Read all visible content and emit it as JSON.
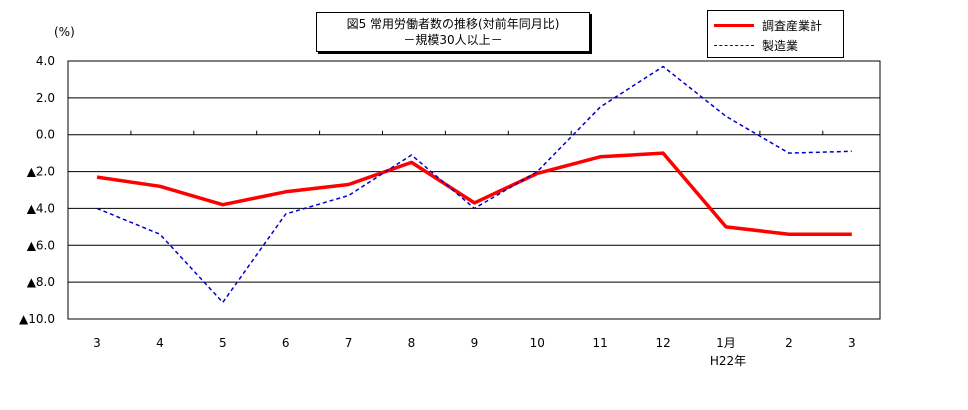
{
  "chart_data": {
    "type": "line",
    "title": "図5 常用労働者数の推移(対前年同月比)",
    "subtitle": "－規模30人以上－",
    "unit_label": "(%)",
    "ylim": [
      -10.0,
      4.0
    ],
    "y_ticks": [
      4.0,
      2.0,
      0.0,
      -2.0,
      -4.0,
      -6.0,
      -8.0,
      -10.0
    ],
    "y_tick_labels": [
      "4.0",
      "2.0",
      "0.0",
      "▲2.0",
      "▲4.0",
      "▲6.0",
      "▲8.0",
      "▲10.0"
    ],
    "categories": [
      "3",
      "4",
      "5",
      "6",
      "7",
      "8",
      "9",
      "10",
      "11",
      "12",
      "1月",
      "2",
      "3"
    ],
    "category_sublabels": {
      "10": "H22年"
    },
    "grid": true,
    "legend_position": "top-right",
    "series": [
      {
        "name": "調査産業計",
        "color": "#ff0000",
        "style": "solid",
        "values": [
          -2.3,
          -2.8,
          -3.8,
          -3.1,
          -2.7,
          -1.5,
          -3.7,
          -2.1,
          -1.2,
          -1.0,
          -5.0,
          -5.4,
          -5.4
        ]
      },
      {
        "name": "製造業",
        "color": "#0000cc",
        "style": "dashed",
        "values": [
          -4.0,
          -5.4,
          -9.1,
          -4.3,
          -3.3,
          -1.1,
          -4.0,
          -2.0,
          1.5,
          3.7,
          1.0,
          -1.0,
          -0.9
        ]
      }
    ]
  }
}
